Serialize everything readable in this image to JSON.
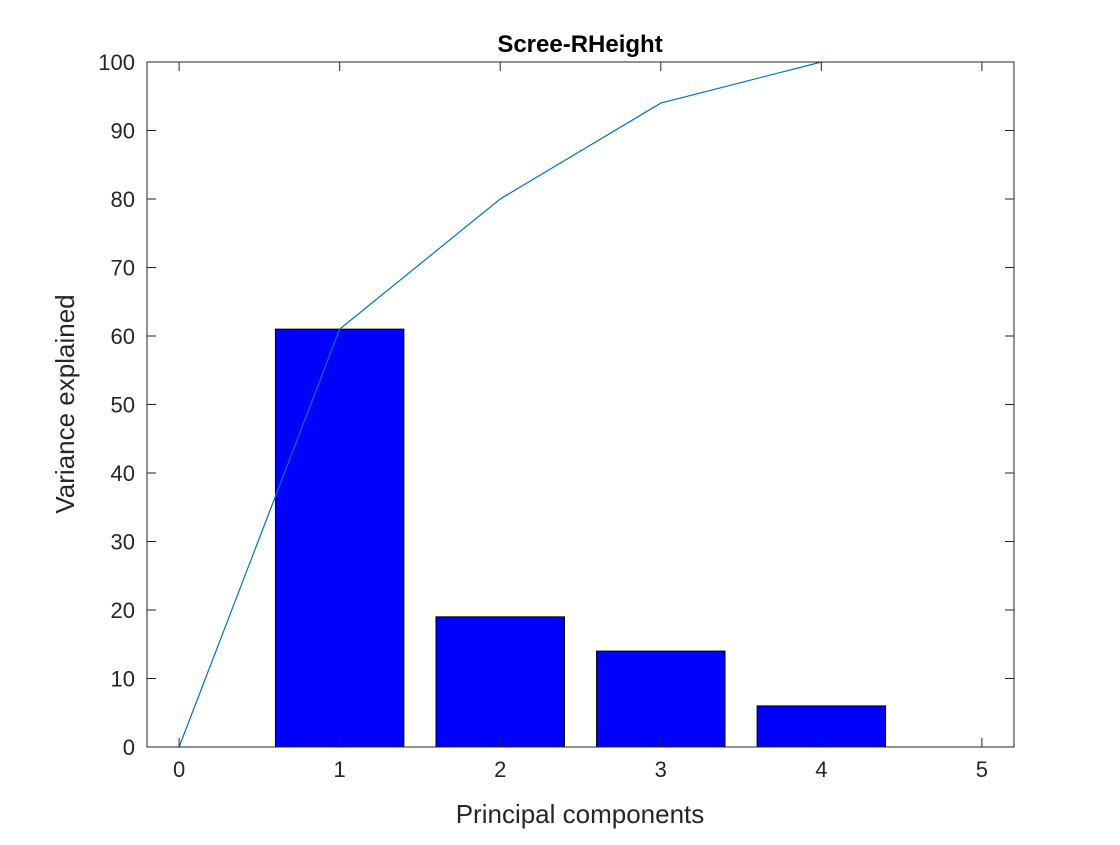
{
  "chart_data": {
    "type": "bar",
    "title": "Scree-RHeight",
    "xlabel": "Principal components",
    "ylabel": "Variance explained",
    "xlim": [
      -0.2,
      5.2
    ],
    "ylim": [
      0,
      100
    ],
    "xticks": [
      0,
      1,
      2,
      3,
      4,
      5
    ],
    "yticks": [
      0,
      10,
      20,
      30,
      40,
      50,
      60,
      70,
      80,
      90,
      100
    ],
    "grid": false,
    "legend": "none",
    "bars": {
      "x": [
        1,
        2,
        3,
        4
      ],
      "values": [
        61,
        19,
        14,
        6
      ],
      "width": 0.8,
      "color": "#0000ff",
      "edge_color": "#000000"
    },
    "line": {
      "x": [
        0,
        1,
        2,
        3,
        4
      ],
      "values": [
        0,
        61,
        80,
        94,
        100
      ],
      "color": "#0072bd"
    }
  }
}
